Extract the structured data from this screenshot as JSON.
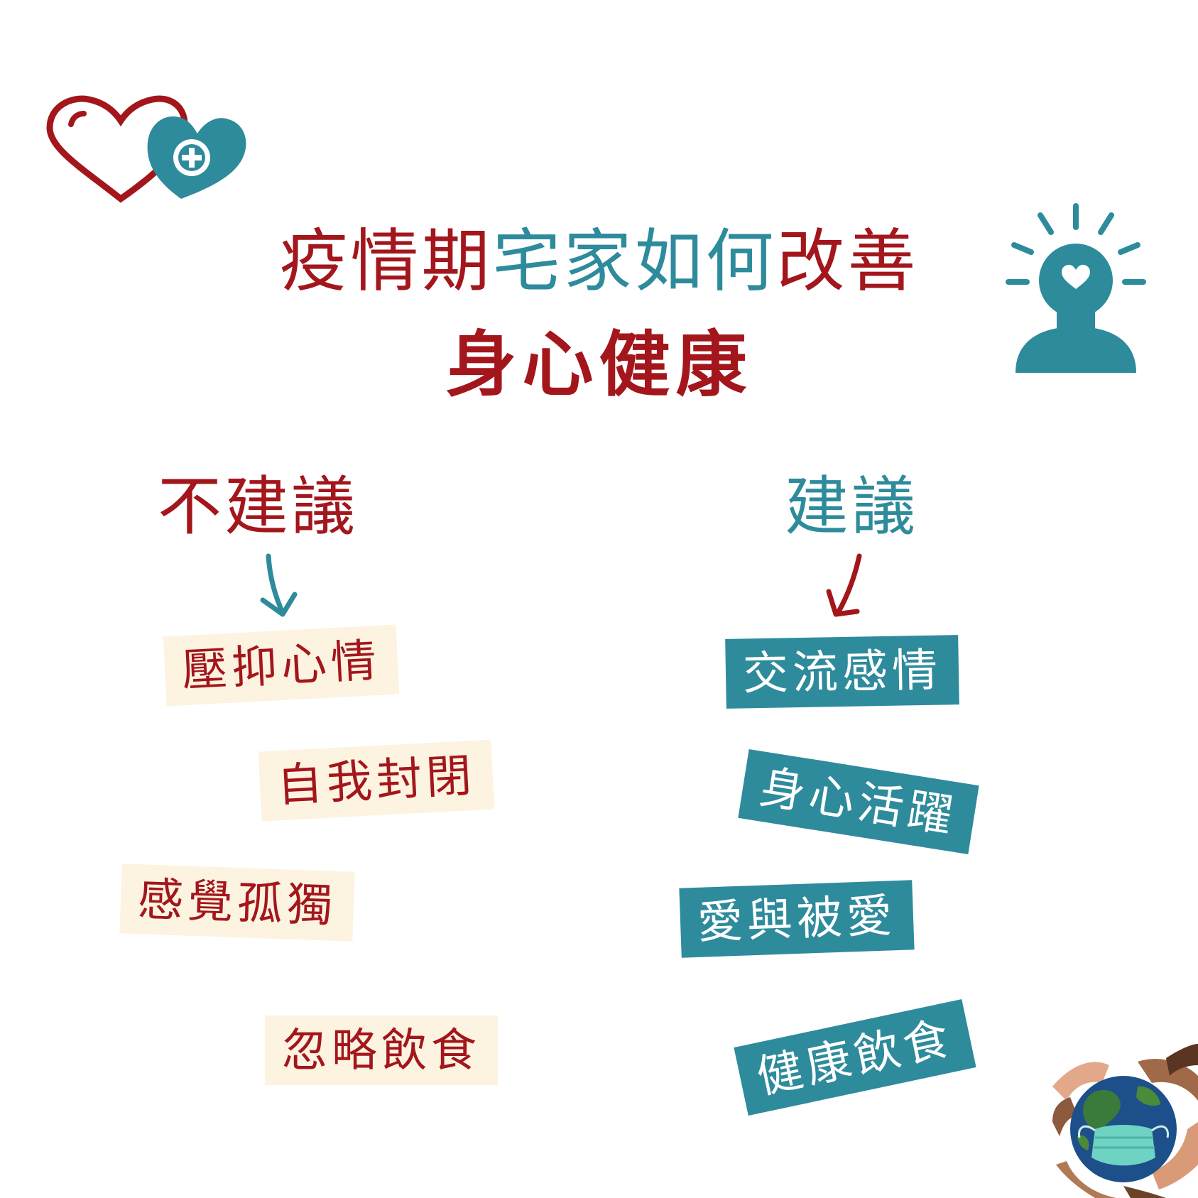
{
  "colors": {
    "red": "#a3161c",
    "teal": "#2e8b9c",
    "cream": "#fcf3e0",
    "white": "#ffffff"
  },
  "title": {
    "line1_part1": "疫情期",
    "line1_part2": "宅家如何",
    "line1_part3": "改善",
    "line2": "身心健康"
  },
  "not_recommended": {
    "heading": "不建議",
    "items": [
      "壓抑心情",
      "自我封閉",
      "感覺孤獨",
      "忽略飲食"
    ]
  },
  "recommended": {
    "heading": "建議",
    "items": [
      "交流感情",
      "身心活躍",
      "愛與被愛",
      "健康飲食"
    ]
  },
  "icons": [
    "hearts-medical-icon",
    "mind-lightbulb-person-icon",
    "globe-mask-hands-icon"
  ]
}
